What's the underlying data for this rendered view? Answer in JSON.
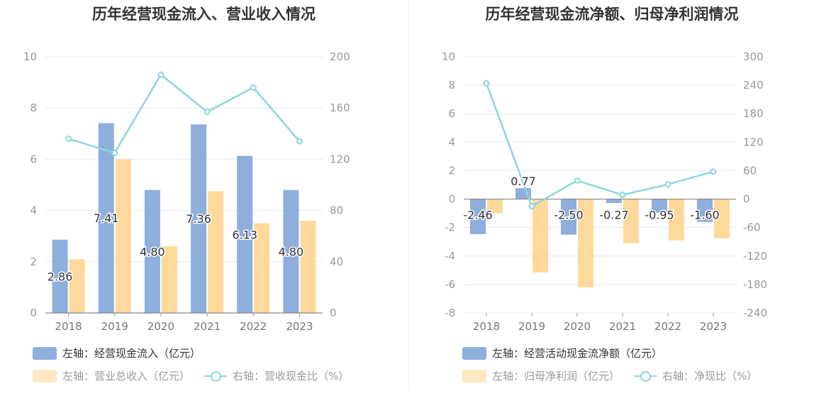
{
  "colors": {
    "bar_primary": "#8eaedc",
    "bar_secondary": "#ffd99b",
    "line": "#8dd6dc",
    "grid": "#e6e8f2",
    "axis": "#999999",
    "label": "#333333"
  },
  "chart_data": [
    {
      "type": "bar",
      "title": "历年经营现金流入、营业收入情况",
      "categories": [
        "2018",
        "2019",
        "2020",
        "2021",
        "2022",
        "2023"
      ],
      "series": [
        {
          "name": "左轴：经营现金流入（亿元）",
          "axis": "left",
          "type": "bar",
          "values": [
            2.86,
            7.41,
            4.8,
            7.36,
            6.13,
            4.8
          ],
          "labels": [
            "2.86",
            "7.41",
            "4.80",
            "7.36",
            "6.13",
            "4.80"
          ]
        },
        {
          "name": "左轴：营业总收入（亿元）",
          "axis": "left",
          "type": "bar",
          "values": [
            2.1,
            6.0,
            2.6,
            4.75,
            3.5,
            3.6
          ]
        },
        {
          "name": "右轴：营收现金比（%）",
          "axis": "right",
          "type": "line",
          "values": [
            136,
            125,
            186,
            157,
            176,
            134
          ]
        }
      ],
      "left_axis": {
        "ylim": [
          0,
          10
        ],
        "ticks": [
          "0",
          "2",
          "4",
          "6",
          "8",
          "10"
        ]
      },
      "right_axis": {
        "ylim": [
          0,
          200
        ],
        "ticks": [
          "0",
          "40",
          "80",
          "120",
          "160",
          "200"
        ]
      },
      "grid": true,
      "legend_position": "bottom"
    },
    {
      "type": "bar",
      "title": "历年经营现金流净额、归母净利润情况",
      "categories": [
        "2018",
        "2019",
        "2020",
        "2021",
        "2022",
        "2023"
      ],
      "series": [
        {
          "name": "左轴：经营活动现金流净额（亿元）",
          "axis": "left",
          "type": "bar",
          "values": [
            -2.46,
            0.77,
            -2.5,
            -0.27,
            -0.95,
            -1.6
          ],
          "labels": [
            "-2.46",
            "0.77",
            "-2.50",
            "-0.27",
            "-0.95",
            "-1.60"
          ]
        },
        {
          "name": "左轴：归母净利润（亿元）",
          "axis": "left",
          "type": "bar",
          "values": [
            -1.0,
            -5.15,
            -6.2,
            -3.1,
            -2.9,
            -2.75
          ]
        },
        {
          "name": "右轴：净现比（%）",
          "axis": "right",
          "type": "line",
          "values": [
            244,
            -15,
            39,
            9,
            31,
            58
          ]
        }
      ],
      "left_axis": {
        "ylim": [
          -8,
          10
        ],
        "ticks": [
          "-8",
          "-6",
          "-4",
          "-2",
          "0",
          "2",
          "4",
          "6",
          "8",
          "10"
        ]
      },
      "right_axis": {
        "ylim": [
          -240,
          300
        ],
        "ticks": [
          "-240",
          "-180",
          "-120",
          "-60",
          "0",
          "60",
          "120",
          "180",
          "240",
          "300"
        ]
      },
      "grid": true,
      "legend_position": "bottom"
    }
  ]
}
